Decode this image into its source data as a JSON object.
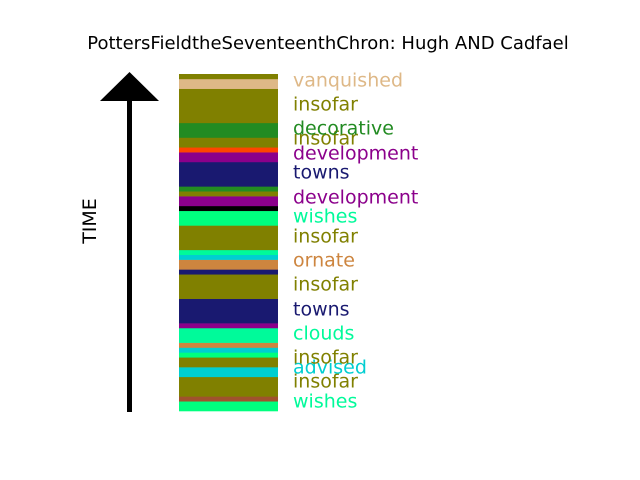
{
  "chart_data": {
    "type": "bar",
    "title": "PottersFieldtheSeventeenthChron: Hugh AND Cadfael",
    "ylabel": "TIME",
    "arrow_color": "#000000",
    "stack_order": "bottom-to-top",
    "segments": [
      {
        "color": "#00ff7f",
        "size": 2
      },
      {
        "color": "#a0522d",
        "size": 1
      },
      {
        "color": "#808000",
        "size": 4
      },
      {
        "color": "#00ced1",
        "size": 2
      },
      {
        "color": "#808000",
        "size": 2
      },
      {
        "color": "#00ff7f",
        "size": 1
      },
      {
        "color": "#00ced1",
        "size": 1
      },
      {
        "color": "#cd853f",
        "size": 1
      },
      {
        "color": "#00fa9a",
        "size": 3
      },
      {
        "color": "#8b008b",
        "size": 1
      },
      {
        "color": "#191970",
        "size": 5
      },
      {
        "color": "#808000",
        "size": 5
      },
      {
        "color": "#191970",
        "size": 1
      },
      {
        "color": "#cd853f",
        "size": 2
      },
      {
        "color": "#00ced1",
        "size": 1
      },
      {
        "color": "#00fa9a",
        "size": 1
      },
      {
        "color": "#808000",
        "size": 5
      },
      {
        "color": "#00ff7f",
        "size": 3
      },
      {
        "color": "#000000",
        "size": 1
      },
      {
        "color": "#8b008b",
        "size": 2
      },
      {
        "color": "#808000",
        "size": 1
      },
      {
        "color": "#228b22",
        "size": 1
      },
      {
        "color": "#191970",
        "size": 5
      },
      {
        "color": "#8b008b",
        "size": 2
      },
      {
        "color": "#ff4500",
        "size": 1
      },
      {
        "color": "#808000",
        "size": 2
      },
      {
        "color": "#228b22",
        "size": 3
      },
      {
        "color": "#808000",
        "size": 7
      },
      {
        "color": "#deb887",
        "size": 2
      },
      {
        "color": "#808000",
        "size": 1
      }
    ],
    "labels": [
      {
        "text": "wishes",
        "color": "#00fa9a"
      },
      {
        "text": "insofar",
        "color": "#808000"
      },
      {
        "text": "advised",
        "color": "#00ced1"
      },
      {
        "text": "insofar",
        "color": "#808000"
      },
      {
        "text": "clouds",
        "color": "#00fa9a"
      },
      {
        "text": "towns",
        "color": "#191970"
      },
      {
        "text": "insofar",
        "color": "#808000"
      },
      {
        "text": "ornate",
        "color": "#cd853f"
      },
      {
        "text": "insofar",
        "color": "#808000"
      },
      {
        "text": "wishes",
        "color": "#00fa9a"
      },
      {
        "text": "development",
        "color": "#8b008b"
      },
      {
        "text": "towns",
        "color": "#191970"
      },
      {
        "text": "development",
        "color": "#8b008b"
      },
      {
        "text": "insofar",
        "color": "#808000"
      },
      {
        "text": "decorative",
        "color": "#228b22"
      },
      {
        "text": "insofar",
        "color": "#808000"
      },
      {
        "text": "vanquished",
        "color": "#deb887"
      }
    ]
  }
}
